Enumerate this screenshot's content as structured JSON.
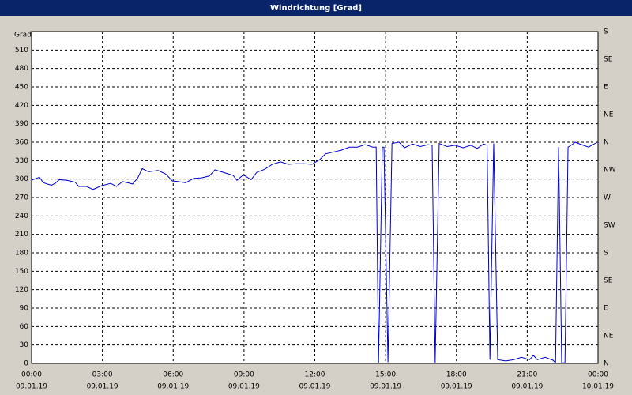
{
  "chart_data": {
    "type": "line",
    "title": "Windrichtung [Grad]",
    "y_label": "Grad",
    "color": "#0000cc",
    "grid": true,
    "x": [
      0,
      0.33,
      0.5,
      0.84,
      1.0,
      1.17,
      1.5,
      1.84,
      2.0,
      2.34,
      2.6,
      2.95,
      3.35,
      3.6,
      3.85,
      4.28,
      4.5,
      4.69,
      4.95,
      5.36,
      5.69,
      5.96,
      6.19,
      6.53,
      6.86,
      7.2,
      7.53,
      7.77,
      8.2,
      8.54,
      8.7,
      8.97,
      9.3,
      9.54,
      9.88,
      10.2,
      10.55,
      10.88,
      11.2,
      11.55,
      11.88,
      12.22,
      12.45,
      12.79,
      13.12,
      13.46,
      13.8,
      14.13,
      14.46,
      14.6,
      14.7,
      14.86,
      14.93,
      15.1,
      15.27,
      15.57,
      15.8,
      16.14,
      16.47,
      16.8,
      16.97,
      17.1,
      17.27,
      17.6,
      17.94,
      18.28,
      18.61,
      18.88,
      19.15,
      19.3,
      19.42,
      19.58,
      19.75,
      20.09,
      20.42,
      20.76,
      21.1,
      21.26,
      21.43,
      21.76,
      22.1,
      22.2,
      22.33,
      22.46,
      22.6,
      22.73,
      22.9,
      23.03,
      23.37,
      23.6,
      23.97
    ],
    "values": [
      298,
      303,
      294,
      290,
      293,
      299,
      298,
      295,
      288,
      288,
      283,
      289,
      293,
      288,
      296,
      292,
      302,
      317,
      312,
      314,
      308,
      297,
      296,
      294,
      301,
      302,
      305,
      315,
      310,
      306,
      298,
      307,
      299,
      311,
      316,
      324,
      328,
      324,
      325,
      325,
      324,
      332,
      341,
      344,
      347,
      352,
      352,
      356,
      352,
      352,
      1,
      352,
      352,
      2,
      358,
      360,
      351,
      357,
      353,
      356,
      355,
      1,
      358,
      353,
      355,
      351,
      355,
      350,
      357,
      355,
      6,
      358,
      6,
      4,
      6,
      10,
      6,
      13,
      6,
      10,
      5,
      1,
      352,
      1,
      1,
      352,
      356,
      360,
      355,
      352,
      360
    ],
    "xlim": [
      0,
      24
    ],
    "xticks": [
      {
        "value": 0,
        "label": "00:00"
      },
      {
        "value": 3,
        "label": "03:00"
      },
      {
        "value": 6,
        "label": "06:00"
      },
      {
        "value": 9,
        "label": "09:00"
      },
      {
        "value": 12,
        "label": "12:00"
      },
      {
        "value": 15,
        "label": "15:00"
      },
      {
        "value": 18,
        "label": "18:00"
      },
      {
        "value": 21,
        "label": "21:00"
      },
      {
        "value": 24,
        "label": "00:00"
      }
    ],
    "xtick_dates": [
      "09.01.19",
      "09.01.19",
      "09.01.19",
      "09.01.19",
      "09.01.19",
      "09.01.19",
      "09.01.19",
      "09.01.19",
      "10.01.19"
    ],
    "ylim": [
      0,
      540
    ],
    "yticks": [
      0,
      30,
      60,
      90,
      120,
      150,
      180,
      210,
      240,
      270,
      300,
      330,
      360,
      390,
      420,
      450,
      480,
      510
    ],
    "y2lim": [
      0,
      540
    ],
    "y2ticks": [
      {
        "value": 0,
        "label": "N"
      },
      {
        "value": 45,
        "label": "NE"
      },
      {
        "value": 90,
        "label": "E"
      },
      {
        "value": 135,
        "label": "SE"
      },
      {
        "value": 180,
        "label": "S"
      },
      {
        "value": 225,
        "label": "SW"
      },
      {
        "value": 270,
        "label": "W"
      },
      {
        "value": 315,
        "label": "NW"
      },
      {
        "value": 360,
        "label": "N"
      },
      {
        "value": 405,
        "label": "NE"
      },
      {
        "value": 450,
        "label": "E"
      },
      {
        "value": 495,
        "label": "SE"
      },
      {
        "value": 540,
        "label": "S"
      }
    ]
  }
}
